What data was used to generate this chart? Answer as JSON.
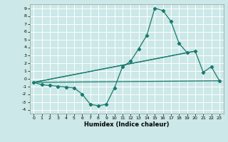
{
  "title": "",
  "xlabel": "Humidex (Indice chaleur)",
  "bg_color": "#cce8e8",
  "line_color": "#1a7a6e",
  "grid_color": "#ffffff",
  "xlim": [
    -0.5,
    23.5
  ],
  "ylim": [
    -4.5,
    9.5
  ],
  "xticks": [
    0,
    1,
    2,
    3,
    4,
    5,
    6,
    7,
    8,
    9,
    10,
    11,
    12,
    13,
    14,
    15,
    16,
    17,
    18,
    19,
    20,
    21,
    22,
    23
  ],
  "yticks": [
    -4,
    -3,
    -2,
    -1,
    0,
    1,
    2,
    3,
    4,
    5,
    6,
    7,
    8,
    9
  ],
  "main_x": [
    0,
    1,
    2,
    3,
    4,
    5,
    6,
    7,
    8,
    9,
    10,
    11,
    12,
    13,
    14,
    15,
    16,
    17,
    18,
    19,
    20,
    21,
    22,
    23
  ],
  "main_y": [
    -0.5,
    -0.8,
    -0.9,
    -1.0,
    -1.1,
    -1.2,
    -2.0,
    -3.3,
    -3.5,
    -3.3,
    -1.2,
    1.5,
    2.2,
    3.8,
    5.5,
    9.0,
    8.7,
    7.3,
    4.5,
    3.3,
    3.5,
    0.8,
    1.5,
    -0.3
  ],
  "line1_x": [
    0,
    23
  ],
  "line1_y": [
    -0.5,
    -0.3
  ],
  "line2_x": [
    0,
    19
  ],
  "line2_y": [
    -0.5,
    3.3
  ],
  "line3_x": [
    0,
    20
  ],
  "line3_y": [
    -0.5,
    3.5
  ]
}
